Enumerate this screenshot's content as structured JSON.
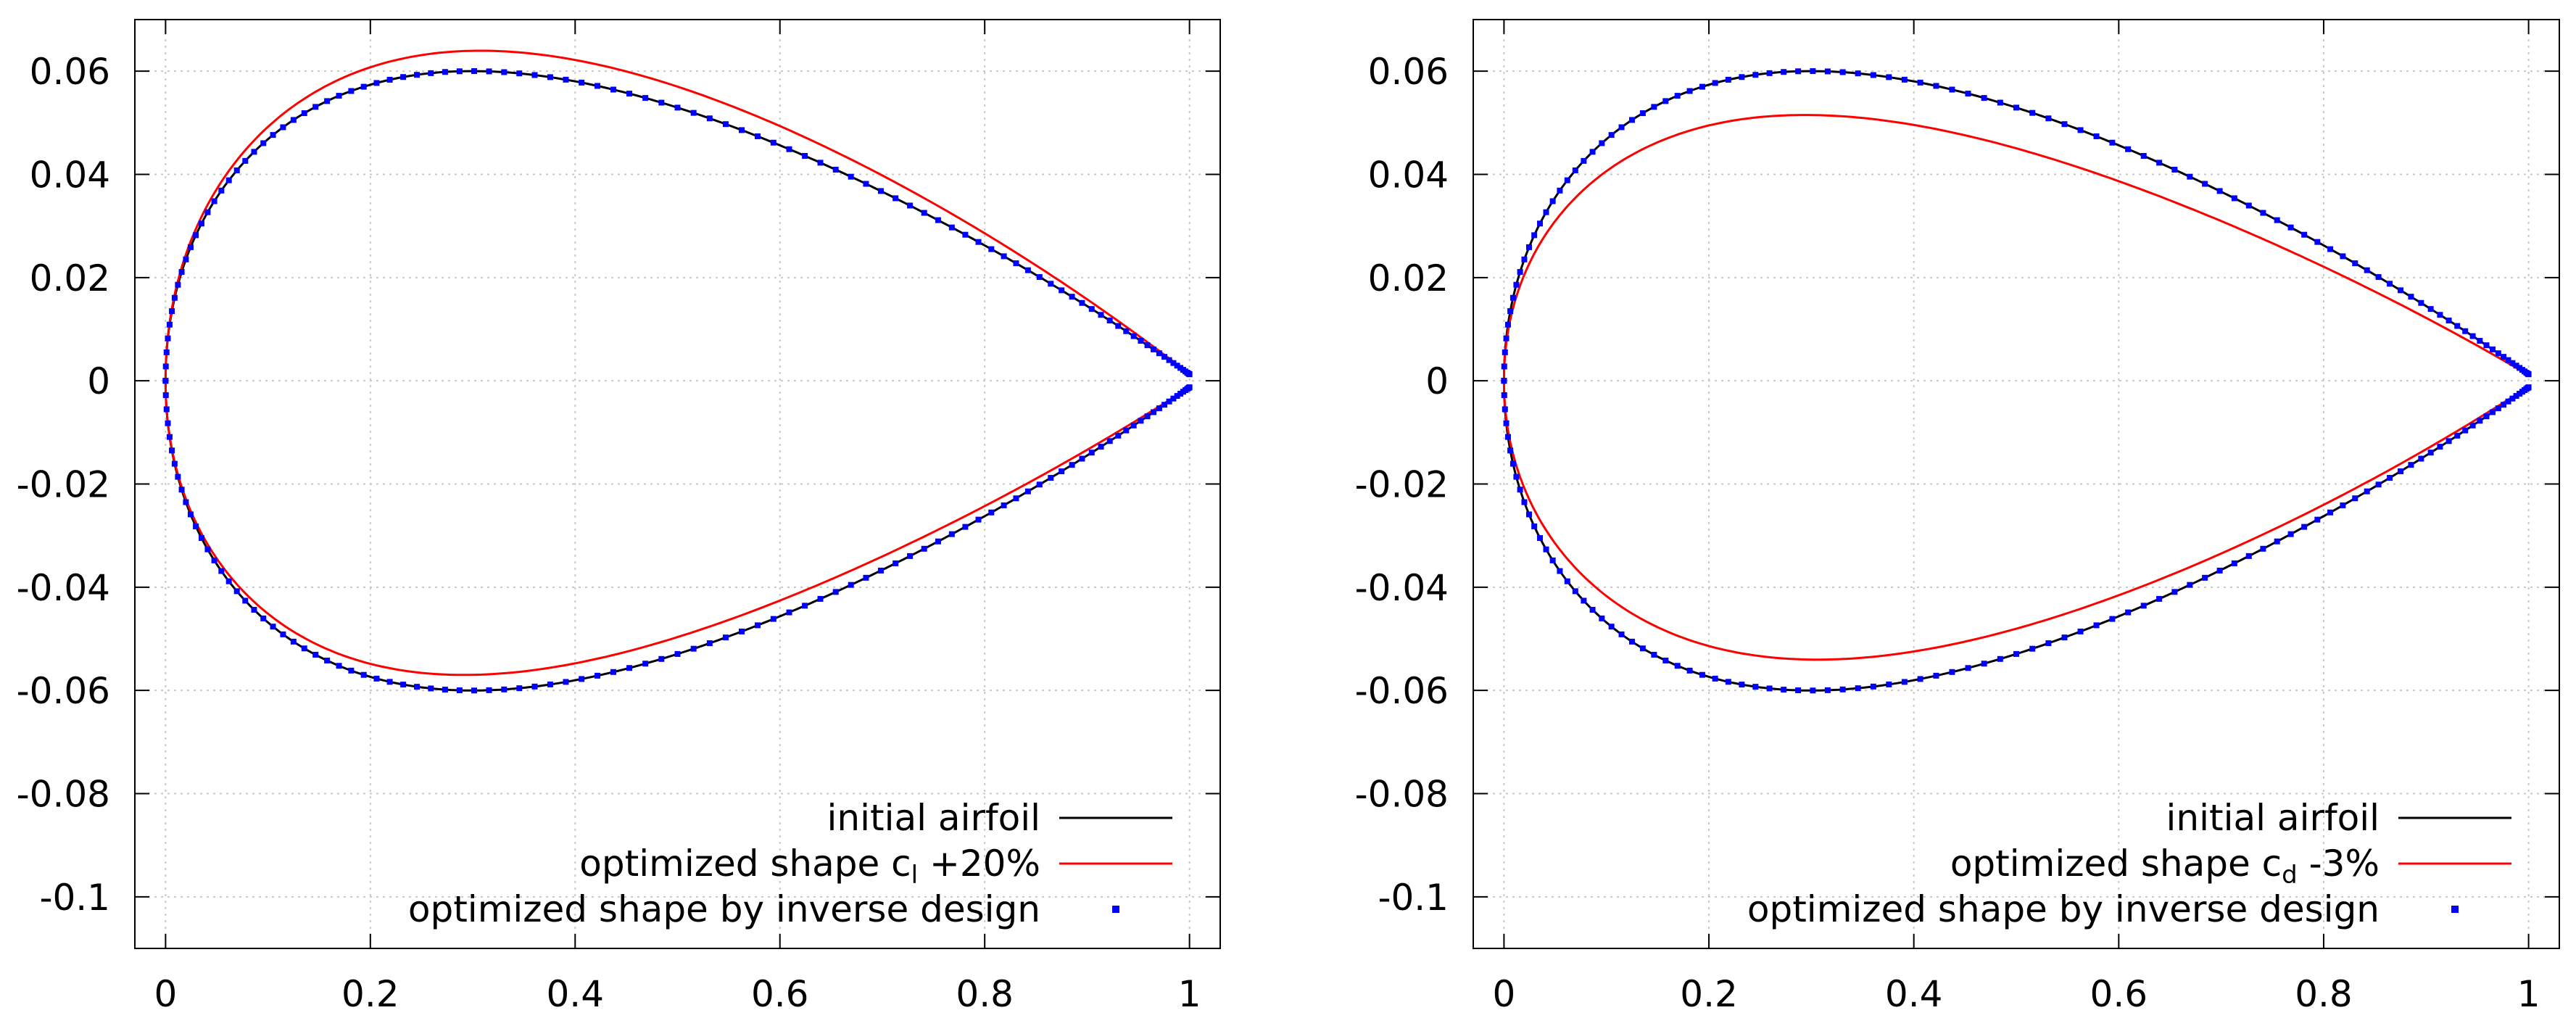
{
  "chart_data": [
    {
      "type": "line",
      "title": "",
      "xlabel": "",
      "ylabel": "",
      "xlim": [
        -0.03,
        1.03
      ],
      "ylim": [
        -0.11,
        0.07
      ],
      "grid": true,
      "legend_position": "bottom-right",
      "xticks": [
        0,
        0.2,
        0.4,
        0.6,
        0.8,
        1
      ],
      "xtick_labels": [
        "0",
        "0.2",
        "0.4",
        "0.6",
        "0.8",
        "1"
      ],
      "yticks": [
        0.06,
        0.04,
        0.02,
        0,
        -0.02,
        -0.04,
        -0.06,
        -0.08,
        -0.1
      ],
      "ytick_labels": [
        "0.06",
        "0.04",
        "0.02",
        "0",
        "-0.02",
        "-0.04",
        "-0.06",
        "-0.08",
        "-0.1"
      ],
      "series": [
        {
          "name": "initial airfoil",
          "style": "line",
          "color": "#000000",
          "thickness": 0.12,
          "camber": 0.0,
          "lower_scale": 1.0
        },
        {
          "name": "optimized shape c",
          "sub": "l",
          "suffix": " +20%",
          "style": "line",
          "color": "#ff0000",
          "thickness": 0.124,
          "camber": 0.0023,
          "lower_scale": 0.95
        },
        {
          "name": "optimized shape by inverse design",
          "style": "points",
          "color": "#0000ff",
          "thickness": 0.12,
          "camber": 0.0,
          "lower_scale": 1.0
        }
      ]
    },
    {
      "type": "line",
      "title": "",
      "xlabel": "",
      "ylabel": "",
      "xlim": [
        -0.03,
        1.03
      ],
      "ylim": [
        -0.11,
        0.07
      ],
      "grid": true,
      "legend_position": "bottom-right",
      "xticks": [
        0,
        0.2,
        0.4,
        0.6,
        0.8,
        1
      ],
      "xtick_labels": [
        "0",
        "0.2",
        "0.4",
        "0.6",
        "0.8",
        "1"
      ],
      "yticks": [
        0.06,
        0.04,
        0.02,
        0,
        -0.02,
        -0.04,
        -0.06,
        -0.08,
        -0.1
      ],
      "ytick_labels": [
        "0.06",
        "0.04",
        "0.02",
        "0",
        "-0.02",
        "-0.04",
        "-0.06",
        "-0.08",
        "-0.1"
      ],
      "series": [
        {
          "name": "initial airfoil",
          "style": "line",
          "color": "#000000",
          "thickness": 0.12,
          "camber": 0.0,
          "lower_scale": 1.0
        },
        {
          "name": "optimized shape c",
          "sub": "d",
          "suffix": " -3%",
          "style": "line",
          "color": "#ff0000",
          "thickness": 0.1055,
          "camber": -0.0015,
          "lower_scale": 1.0
        },
        {
          "name": "optimized shape by inverse design",
          "style": "points",
          "color": "#0000ff",
          "thickness": 0.12,
          "camber": 0.0,
          "lower_scale": 1.0
        }
      ]
    }
  ]
}
